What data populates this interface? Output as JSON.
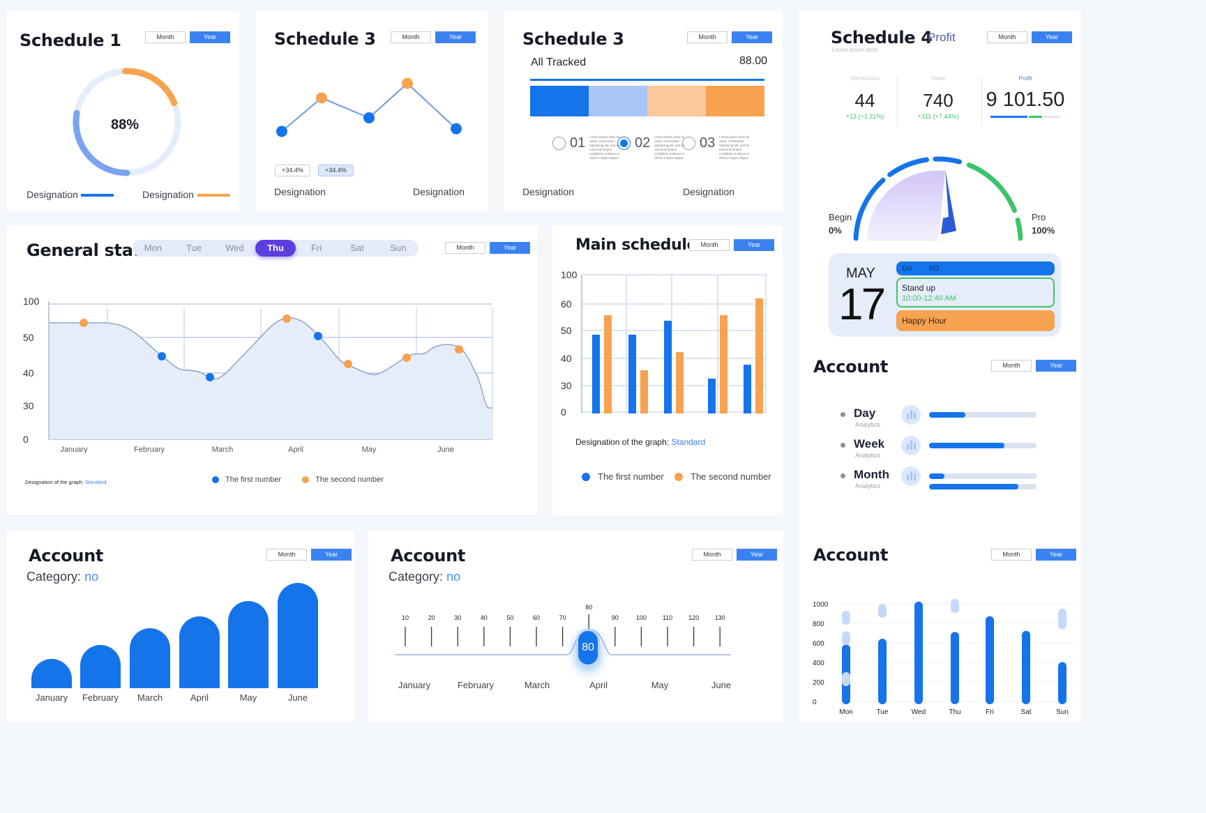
{
  "common": {
    "month": "Month",
    "year": "Year",
    "designation": "Designation",
    "first_number": "The first number",
    "second_number": "The second number",
    "graph_designation": "Designation of the graph:",
    "standard": "Standard"
  },
  "colors": {
    "blue": "#1574ea",
    "orange": "#f7a24f",
    "light_blue": "#a9c5f7",
    "peach": "#fcc79a",
    "green": "#3cc46a",
    "purple": "#5b3de0"
  },
  "schedule1": {
    "title": "Schedule 1",
    "value": "88%",
    "percent": 88
  },
  "schedule3a": {
    "title": "Schedule 3",
    "badges": [
      "+34.4%",
      "+34.4%"
    ]
  },
  "schedule3b": {
    "title": "Schedule 3",
    "tracked_label": "All Tracked",
    "tracked_value": "88.00",
    "options": [
      "01",
      "02",
      "03"
    ],
    "lorem": "Lorem ipsum dolor sit amet, consectetur adipiscing elit, sed do eiusmod tempor incididunt ut labore et dolore magna aliqua."
  },
  "schedule4": {
    "title": "Schedule 4",
    "profit_tab": "Profit",
    "subtitle": "Lorem ipsum dolor",
    "stats": [
      {
        "label": "Interactions",
        "value": "44",
        "delta": "+13 (+1.21%)"
      },
      {
        "label": "Views",
        "value": "740",
        "delta": "+311 (+7.44%)"
      },
      {
        "label": "Profit",
        "value": "9 101.50",
        "delta": ""
      }
    ],
    "gauge_begin": "Begin",
    "gauge_begin_pct": "0%",
    "gauge_end": "Pro",
    "gauge_end_pct": "100%"
  },
  "calendar": {
    "month": "MAY",
    "day": "17",
    "events": [
      {
        "title": "Go",
        "sub": "I/O"
      },
      {
        "title": "Stand up",
        "sub": "10:00-12:40 AM"
      },
      {
        "title": "Happy Hour",
        "sub": ""
      }
    ]
  },
  "account_analytics": {
    "title": "Account",
    "items": [
      {
        "label": "Day",
        "sub": "Analytics",
        "fill": 0.34
      },
      {
        "label": "Week",
        "sub": "Analytics",
        "fill": 0.7
      },
      {
        "label": "Month",
        "sub": "Analytics",
        "fill": 0.14,
        "fill2": 0.83
      }
    ]
  },
  "general_stats": {
    "title": "General stats",
    "days": [
      "Mon",
      "Tue",
      "Wed",
      "Thu",
      "Fri",
      "Sat",
      "Sun"
    ],
    "active_day": "Thu"
  },
  "main_schedule": {
    "title": "Main schedule"
  },
  "account_bars": {
    "title": "Account",
    "category_label": "Category:",
    "category_value": "no"
  },
  "account_slider": {
    "title": "Account",
    "category_label": "Category:",
    "category_value": "no",
    "selected": "80",
    "slider_value": 80,
    "ticks": [
      "10",
      "20",
      "30",
      "40",
      "50",
      "60",
      "70",
      "80",
      "90",
      "100",
      "110",
      "120",
      "130"
    ],
    "months": [
      "January",
      "February",
      "March",
      "April",
      "May",
      "June"
    ]
  },
  "account_week": {
    "title": "Account"
  },
  "chart_data": [
    {
      "type": "line",
      "chart": "general_stats",
      "x": [
        "January",
        "February",
        "March",
        "April",
        "May",
        "June"
      ],
      "ylim": [
        0,
        100
      ],
      "yticks": [
        "0",
        "30",
        "40",
        "50",
        "100"
      ],
      "series": [
        {
          "name": "The first number",
          "points": [
            [
              2.1,
              43
            ],
            [
              2.9,
              38
            ],
            [
              4.4,
              47
            ]
          ]
        },
        {
          "name": "The second number",
          "points": [
            [
              0.55,
              54
            ],
            [
              3.95,
              55
            ],
            [
              4.4,
              43
            ],
            [
              5.5,
              43
            ],
            [
              6.2,
              47
            ]
          ]
        }
      ]
    },
    {
      "type": "line",
      "chart": "schedule3",
      "categories": [
        "1",
        "2",
        "3",
        "4",
        "5"
      ],
      "values": [
        25,
        62,
        40,
        78,
        28
      ]
    },
    {
      "type": "bar",
      "chart": "main_schedule",
      "yticks": [
        "0",
        "30",
        "40",
        "50",
        "60",
        "100"
      ],
      "series": [
        {
          "name": "The first number",
          "values": [
            48,
            48,
            53,
            33,
            38
          ]
        },
        {
          "name": "The second number",
          "values": [
            55,
            36,
            42,
            55,
            62
          ]
        }
      ]
    },
    {
      "type": "bar",
      "chart": "account_bars",
      "categories": [
        "January",
        "February",
        "March",
        "April",
        "May",
        "June"
      ],
      "values": [
        20,
        30,
        42,
        50,
        61,
        74
      ]
    },
    {
      "type": "bar",
      "chart": "account_week",
      "categories": [
        "Mon",
        "Tue",
        "Wed",
        "Thu",
        "Fri",
        "Sat",
        "Sun"
      ],
      "yticks": [
        "0",
        "200",
        "400",
        "600",
        "800",
        "1000"
      ],
      "ylim": [
        0,
        1000
      ],
      "values": [
        540,
        600,
        980,
        670,
        830,
        680,
        360
      ]
    }
  ]
}
